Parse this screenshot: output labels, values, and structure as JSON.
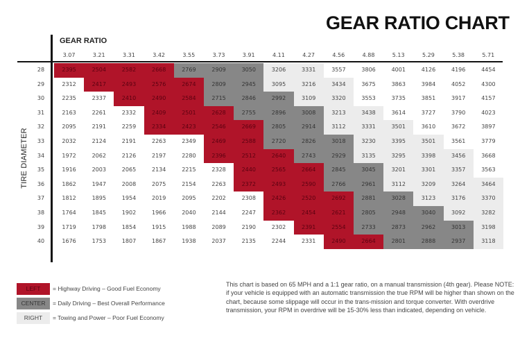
{
  "chart_data": {
    "type": "table",
    "title": "GEAR RATIO CHART",
    "xlabel": "GEAR RATIO",
    "ylabel": "TIRE DIAMETER",
    "gear_ratios": [
      "3.07",
      "3.21",
      "3.31",
      "3.42",
      "3.55",
      "3.73",
      "3.91",
      "4.11",
      "4.27",
      "4.56",
      "4.88",
      "5.13",
      "5.29",
      "5.38",
      "5.71"
    ],
    "tire_diameters": [
      "28",
      "29",
      "30",
      "31",
      "32",
      "33",
      "34",
      "35",
      "36",
      "37",
      "38",
      "39",
      "40"
    ],
    "rpm": [
      [
        2395,
        2504,
        2582,
        2668,
        2769,
        2909,
        3050,
        3206,
        3331,
        3557,
        3806,
        4001,
        4126,
        4196,
        4454
      ],
      [
        2312,
        2417,
        2493,
        2576,
        2674,
        2809,
        2945,
        3095,
        3216,
        3434,
        3675,
        3863,
        3984,
        4052,
        4300
      ],
      [
        2235,
        2337,
        2410,
        2490,
        2584,
        2715,
        2846,
        2992,
        3109,
        3320,
        3553,
        3735,
        3851,
        3917,
        4157
      ],
      [
        2163,
        2261,
        2332,
        2409,
        2501,
        2628,
        2755,
        2896,
        3008,
        3213,
        3438,
        3614,
        3727,
        3790,
        4023
      ],
      [
        2095,
        2191,
        2259,
        2334,
        2423,
        2546,
        2669,
        2805,
        2914,
        3112,
        3331,
        3501,
        3610,
        3672,
        3897
      ],
      [
        2032,
        2124,
        2191,
        2263,
        2349,
        2469,
        2588,
        2720,
        2826,
        3018,
        3230,
        3395,
        3501,
        3561,
        3779
      ],
      [
        1972,
        2062,
        2126,
        2197,
        2280,
        2396,
        2512,
        2640,
        2743,
        2929,
        3135,
        3295,
        3398,
        3456,
        3668
      ],
      [
        1916,
        2003,
        2065,
        2134,
        2215,
        2328,
        2440,
        2565,
        2664,
        2845,
        3045,
        3201,
        3301,
        3357,
        3563
      ],
      [
        1862,
        1947,
        2008,
        2075,
        2154,
        2263,
        2372,
        2493,
        2590,
        2766,
        2961,
        3112,
        3209,
        3264,
        3464
      ],
      [
        1812,
        1895,
        1954,
        2019,
        2095,
        2202,
        2308,
        2426,
        2520,
        2692,
        2881,
        3028,
        3123,
        3176,
        3370
      ],
      [
        1764,
        1845,
        1902,
        1966,
        2040,
        2144,
        2247,
        2362,
        2454,
        2621,
        2805,
        2948,
        3040,
        3092,
        3282
      ],
      [
        1719,
        1798,
        1854,
        1915,
        1988,
        2089,
        2190,
        2302,
        2391,
        2554,
        2733,
        2873,
        2962,
        3013,
        3198
      ],
      [
        1676,
        1753,
        1807,
        1867,
        1938,
        2037,
        2135,
        2244,
        2331,
        2490,
        2664,
        2801,
        2888,
        2937,
        3118
      ]
    ],
    "bands": [
      "LLLLCCCRRWWWWWW",
      "WLLLLCCRRRWWWWW",
      "WWLLLCCCRRWWWWW",
      "WWWLLLCCCRRWWWW",
      "WWWLLLLCCRRRWWW",
      "WWWWWLLCCCRRRWW",
      "WWWWWLLLCCRRRRW",
      "WWWWWWLLLCCRRRW",
      "WWWWWWLLLCCRRRR",
      "WWWWWWWLLLCCRRR",
      "WWWWWWWLLLCCCRR",
      "WWWWWWWWLLCCCCR",
      "WWWWWWWWWLLCCCR"
    ],
    "legend": [
      {
        "key": "L",
        "label": "LEFT",
        "description": "= Highway Driving – Good Fuel Economy",
        "color": "#b01429"
      },
      {
        "key": "C",
        "label": "CENTER",
        "description": "= Daily Driving – Best Overall Performance",
        "color": "#878787"
      },
      {
        "key": "R",
        "label": "RIGHT",
        "description": "= Towing and Power – Poor Fuel Economy",
        "color": "#ececec"
      }
    ]
  },
  "note": "This chart is based on 65 MPH and a 1:1 gear ratio, on a manual transmission (4th gear). Please NOTE: if your vehicle is equipped with an automatic transmission the true RPM will be higher than shown on the chart, because some slippage will occur in the trans-mission and torque converter. With overdrive transmission, your RPM in overdrive will be 15-30% less than indicated, depending on vehicle."
}
